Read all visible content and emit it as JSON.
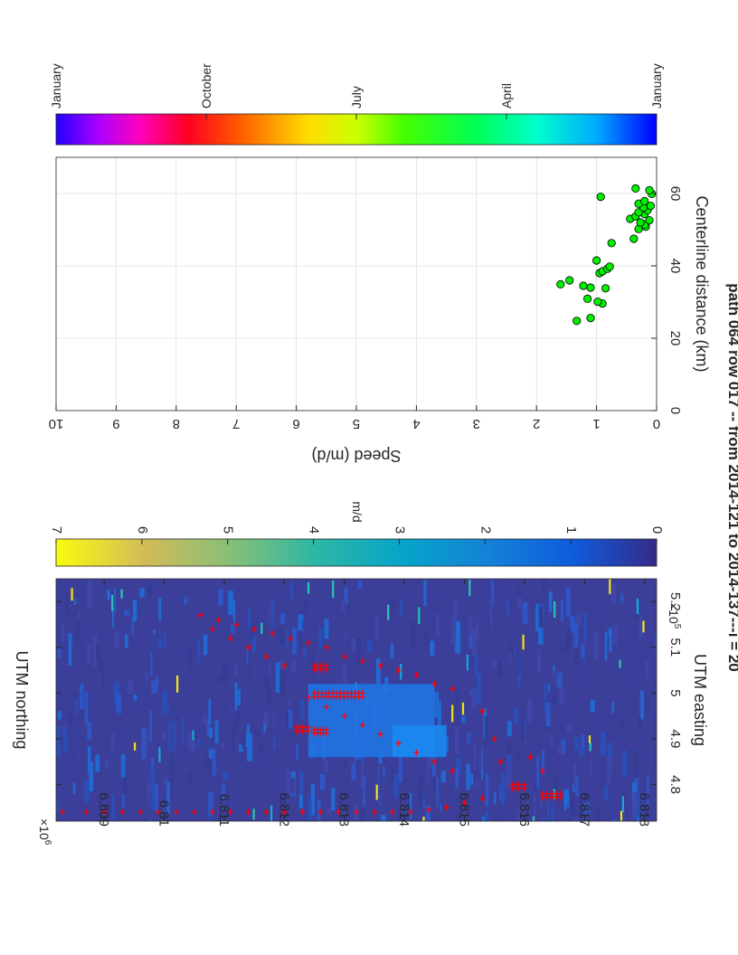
{
  "figure": {
    "title": "path 064 row 017  -- from 2014-121 to 2014-137---i = 20"
  },
  "colors": {
    "map_background": "#3b3f9a",
    "velocity_pts": "#00ee00",
    "markers": "#ff0000",
    "grid": "#e0e0e0",
    "axis": "#262626"
  },
  "chart_data": [
    {
      "type": "heatmap",
      "title": "",
      "xlabel": "UTM easting",
      "ylabel": "UTM northing",
      "x_exponent": "×10^5",
      "y_exponent": "×10^6",
      "xlim": [
        5.25,
        4.72
      ],
      "ylim": [
        6.8082,
        6.8182
      ],
      "x_ticks": [
        5.2,
        5.1,
        5.0,
        4.9,
        4.8
      ],
      "x_tick_labels": [
        "5.2",
        "5.1",
        "5",
        "4.9",
        "4.8"
      ],
      "y_ticks": [
        6.809,
        6.81,
        6.811,
        6.812,
        6.813,
        6.814,
        6.815,
        6.816,
        6.817,
        6.818
      ],
      "y_tick_labels": [
        "6.809",
        "6.81",
        "6.811",
        "6.812",
        "6.813",
        "6.814",
        "6.815",
        "6.816",
        "6.817",
        "6.818"
      ],
      "colorbar": {
        "label": "m/d",
        "range": [
          0,
          7
        ],
        "ticks": [
          0,
          1,
          2,
          3,
          4,
          5,
          6,
          7
        ],
        "tick_labels": [
          "0",
          "1",
          "2",
          "3",
          "4",
          "5",
          "6",
          "7"
        ],
        "colormap": "parula"
      },
      "high_speed_region": {
        "easting_range": [
          4.86,
          5.02
        ],
        "northing_range": [
          6.8124,
          6.8145
        ],
        "value_m_per_d": 1.2
      },
      "marker_series": {
        "name": "",
        "symbol": "+",
        "points": [
          [
            4.74,
            6.8083
          ],
          [
            4.74,
            6.8087
          ],
          [
            4.74,
            6.809
          ],
          [
            4.74,
            6.8093
          ],
          [
            4.74,
            6.8096
          ],
          [
            4.74,
            6.8099
          ],
          [
            4.74,
            6.8102
          ],
          [
            4.74,
            6.8105
          ],
          [
            4.74,
            6.8108
          ],
          [
            4.74,
            6.8111
          ],
          [
            4.74,
            6.8114
          ],
          [
            4.74,
            6.8117
          ],
          [
            4.74,
            6.812
          ],
          [
            4.74,
            6.8123
          ],
          [
            4.74,
            6.8126
          ],
          [
            4.74,
            6.8129
          ],
          [
            4.74,
            6.8132
          ],
          [
            4.74,
            6.8135
          ],
          [
            4.74,
            6.8138
          ],
          [
            4.74,
            6.8141
          ],
          [
            4.745,
            6.8144
          ],
          [
            4.75,
            6.8147
          ],
          [
            4.76,
            6.815
          ],
          [
            4.77,
            6.8153
          ],
          [
            5.17,
            6.8106
          ],
          [
            5.16,
            6.8109
          ],
          [
            5.15,
            6.8112
          ],
          [
            5.14,
            6.8115
          ],
          [
            5.13,
            6.8118
          ],
          [
            5.12,
            6.8121
          ],
          [
            5.11,
            6.8124
          ],
          [
            5.1,
            6.8127
          ],
          [
            5.08,
            6.813
          ],
          [
            5.07,
            6.8133
          ],
          [
            5.06,
            6.8136
          ],
          [
            5.05,
            6.8139
          ],
          [
            5.04,
            6.8142
          ],
          [
            5.02,
            6.8145
          ],
          [
            5.01,
            6.8148
          ],
          [
            5.14,
            6.8108
          ],
          [
            5.12,
            6.8111
          ],
          [
            5.1,
            6.8114
          ],
          [
            5.08,
            6.8117
          ],
          [
            5.06,
            6.812
          ],
          [
            4.99,
            6.8124
          ],
          [
            4.97,
            6.8127
          ],
          [
            4.95,
            6.813
          ],
          [
            4.93,
            6.8133
          ],
          [
            4.91,
            6.8136
          ],
          [
            4.89,
            6.8139
          ],
          [
            4.87,
            6.8142
          ],
          [
            4.85,
            6.8145
          ],
          [
            4.83,
            6.8148
          ],
          [
            4.96,
            6.8153
          ],
          [
            4.9,
            6.8155
          ],
          [
            4.85,
            6.8156
          ],
          [
            4.86,
            6.8161
          ],
          [
            4.83,
            6.8163
          ]
        ]
      },
      "dense_marker_clusters": [
        {
          "easting": 5.0,
          "northing_range": [
            6.8125,
            6.8133
          ]
        },
        {
          "easting": 4.925,
          "northing_range": [
            6.8122,
            6.8124
          ]
        },
        {
          "easting": 4.8,
          "northing_range": [
            6.8158,
            6.816
          ]
        },
        {
          "easting": 4.78,
          "northing_range": [
            6.8163,
            6.8166
          ]
        },
        {
          "easting": 4.92,
          "northing_range": [
            6.8125,
            6.8127
          ]
        },
        {
          "easting": 5.06,
          "northing_range": [
            6.8125,
            6.8127
          ]
        }
      ]
    },
    {
      "type": "scatter",
      "title": "",
      "xlabel": "Centerline distance (km)",
      "ylabel": "Speed (m/d)",
      "xlim": [
        0,
        70
      ],
      "ylim": [
        0,
        10
      ],
      "x_ticks": [
        0,
        20,
        40,
        60
      ],
      "y_ticks": [
        0,
        1,
        2,
        3,
        4,
        5,
        6,
        7,
        8,
        9,
        10
      ],
      "grid": true,
      "colorbar": {
        "tick_labels": [
          "January",
          "April",
          "July",
          "October",
          "January"
        ],
        "colormap": "hsv"
      },
      "series": [
        {
          "name": "",
          "color": "#00ee00",
          "points": [
            [
              24.8,
              1.33
            ],
            [
              25.6,
              1.1
            ],
            [
              29.6,
              0.9
            ],
            [
              30.1,
              0.98
            ],
            [
              30.9,
              1.15
            ],
            [
              33.8,
              0.85
            ],
            [
              34.0,
              1.1
            ],
            [
              34.5,
              1.22
            ],
            [
              34.9,
              1.6
            ],
            [
              36.0,
              1.45
            ],
            [
              38.0,
              0.95
            ],
            [
              38.5,
              0.9
            ],
            [
              39.2,
              0.82
            ],
            [
              39.8,
              0.78
            ],
            [
              41.5,
              1.0
            ],
            [
              46.3,
              0.75
            ],
            [
              47.5,
              0.38
            ],
            [
              50.2,
              0.3
            ],
            [
              50.8,
              0.18
            ],
            [
              51.4,
              0.2
            ],
            [
              52.0,
              0.27
            ],
            [
              52.6,
              0.12
            ],
            [
              53.0,
              0.44
            ],
            [
              53.7,
              0.35
            ],
            [
              54.3,
              0.2
            ],
            [
              54.8,
              0.3
            ],
            [
              55.4,
              0.15
            ],
            [
              56.1,
              0.22
            ],
            [
              56.6,
              0.1
            ],
            [
              57.2,
              0.3
            ],
            [
              57.9,
              0.2
            ],
            [
              59.1,
              0.93
            ],
            [
              59.9,
              0.08
            ],
            [
              60.9,
              0.12
            ],
            [
              61.4,
              0.35
            ]
          ]
        }
      ]
    }
  ]
}
